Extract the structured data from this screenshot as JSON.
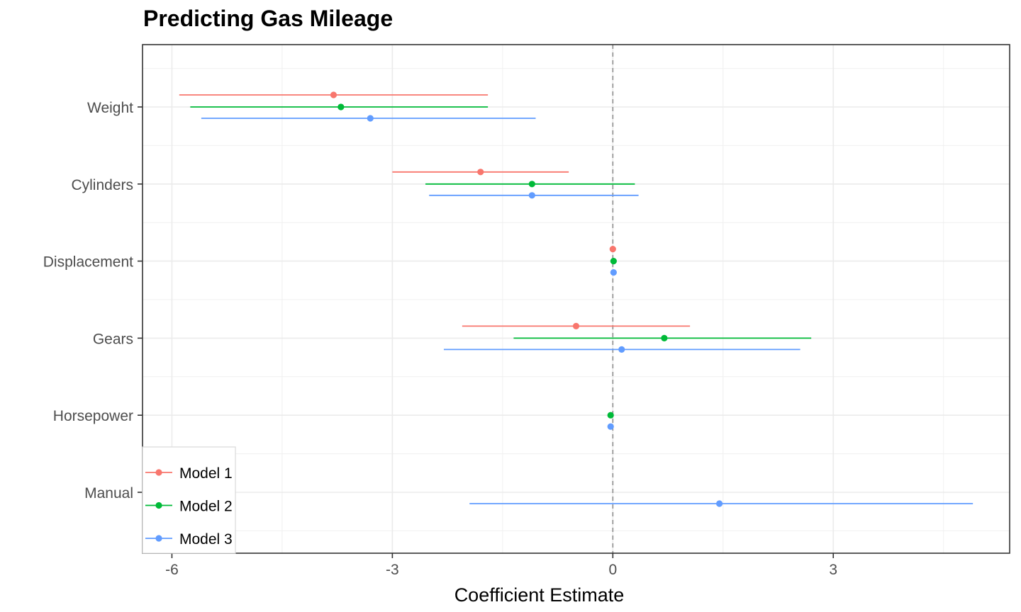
{
  "chart_data": {
    "type": "scatter",
    "subtype": "coefficient-plot",
    "title": "Predicting Gas Mileage",
    "xlabel": "Coefficient Estimate",
    "ylabel": "",
    "xlim": [
      -6.4,
      5.4
    ],
    "x_ticks": [
      -6,
      -3,
      0,
      3
    ],
    "x_tick_labels": [
      "-6",
      "-3",
      "0",
      "3"
    ],
    "categories": [
      "Weight",
      "Cylinders",
      "Displacement",
      "Gears",
      "Horsepower",
      "Manual"
    ],
    "reference_line": {
      "x": 0,
      "style": "dashed"
    },
    "grid": true,
    "legend_position": "bottom-left",
    "series": [
      {
        "name": "Model 1",
        "color": "#F8766D",
        "points": [
          {
            "category": "Weight",
            "estimate": -3.8,
            "low": -5.9,
            "high": -1.7
          },
          {
            "category": "Cylinders",
            "estimate": -1.8,
            "low": -3.0,
            "high": -0.6
          },
          {
            "category": "Displacement",
            "estimate": 0.0,
            "low": 0.0,
            "high": 0.0
          },
          {
            "category": "Gears",
            "estimate": -0.5,
            "low": -2.05,
            "high": 1.05
          }
        ]
      },
      {
        "name": "Model 2",
        "color": "#00BA38",
        "points": [
          {
            "category": "Weight",
            "estimate": -3.7,
            "low": -5.75,
            "high": -1.7
          },
          {
            "category": "Cylinders",
            "estimate": -1.1,
            "low": -2.55,
            "high": 0.3
          },
          {
            "category": "Displacement",
            "estimate": 0.01,
            "low": 0.0,
            "high": 0.02
          },
          {
            "category": "Gears",
            "estimate": 0.7,
            "low": -1.35,
            "high": 2.7
          },
          {
            "category": "Horsepower",
            "estimate": -0.03,
            "low": -0.05,
            "high": -0.01
          }
        ]
      },
      {
        "name": "Model 3",
        "color": "#619CFF",
        "points": [
          {
            "category": "Weight",
            "estimate": -3.3,
            "low": -5.6,
            "high": -1.05
          },
          {
            "category": "Cylinders",
            "estimate": -1.1,
            "low": -2.5,
            "high": 0.35
          },
          {
            "category": "Displacement",
            "estimate": 0.01,
            "low": 0.0,
            "high": 0.02
          },
          {
            "category": "Gears",
            "estimate": 0.12,
            "low": -2.3,
            "high": 2.55
          },
          {
            "category": "Horsepower",
            "estimate": -0.03,
            "low": -0.05,
            "high": -0.01
          },
          {
            "category": "Manual",
            "estimate": 1.45,
            "low": -1.95,
            "high": 4.9
          }
        ]
      }
    ]
  }
}
